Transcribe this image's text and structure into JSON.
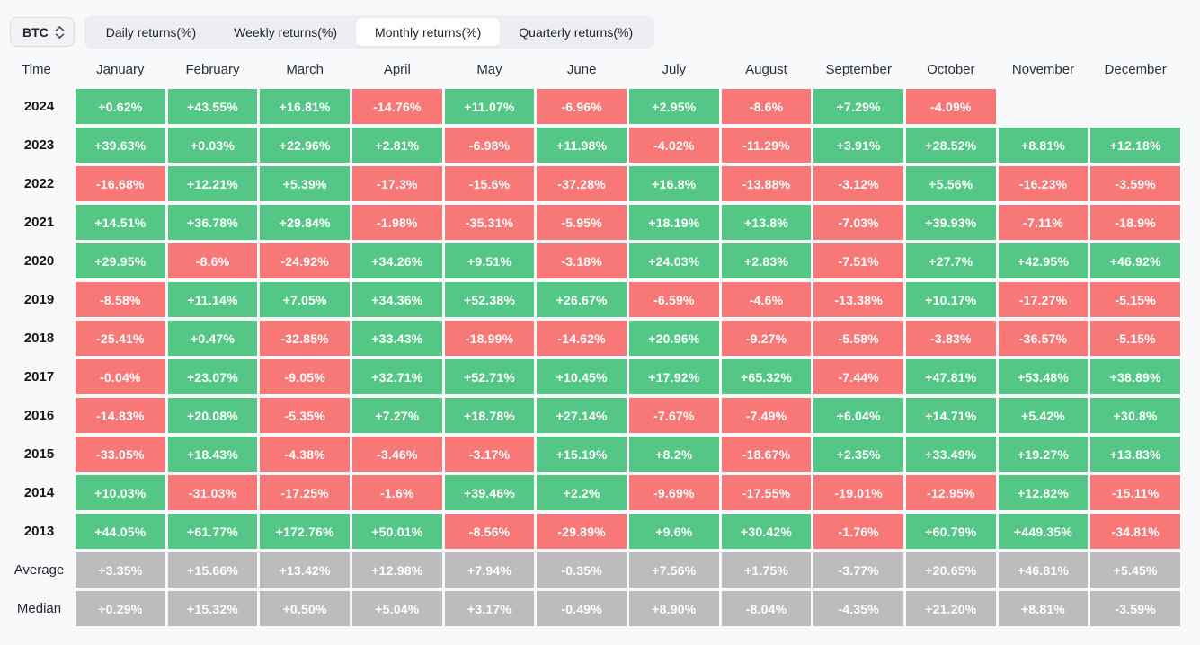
{
  "controls": {
    "symbol": "BTC",
    "tabs": [
      {
        "label": "Daily returns(%)",
        "slug": "daily-returns"
      },
      {
        "label": "Weekly returns(%)",
        "slug": "weekly-returns"
      },
      {
        "label": "Monthly returns(%)",
        "slug": "monthly-returns"
      },
      {
        "label": "Quarterly returns(%)",
        "slug": "quarterly-returns"
      }
    ],
    "active_tab_index": 2
  },
  "colors": {
    "positive": "#54c787",
    "negative": "#f87878",
    "summary": "#bcbcbf"
  },
  "chart_data": {
    "type": "heatmap",
    "title": "BTC Monthly returns(%)",
    "time_header": "Time",
    "columns": [
      "January",
      "February",
      "March",
      "April",
      "May",
      "June",
      "July",
      "August",
      "September",
      "October",
      "November",
      "December"
    ],
    "rows": [
      {
        "label": "2024",
        "type": "year",
        "values": [
          "+0.62%",
          "+43.55%",
          "+16.81%",
          "-14.76%",
          "+11.07%",
          "-6.96%",
          "+2.95%",
          "-8.6%",
          "+7.29%",
          "-4.09%",
          "",
          ""
        ]
      },
      {
        "label": "2023",
        "type": "year",
        "values": [
          "+39.63%",
          "+0.03%",
          "+22.96%",
          "+2.81%",
          "-6.98%",
          "+11.98%",
          "-4.02%",
          "-11.29%",
          "+3.91%",
          "+28.52%",
          "+8.81%",
          "+12.18%"
        ]
      },
      {
        "label": "2022",
        "type": "year",
        "values": [
          "-16.68%",
          "+12.21%",
          "+5.39%",
          "-17.3%",
          "-15.6%",
          "-37.28%",
          "+16.8%",
          "-13.88%",
          "-3.12%",
          "+5.56%",
          "-16.23%",
          "-3.59%"
        ]
      },
      {
        "label": "2021",
        "type": "year",
        "values": [
          "+14.51%",
          "+36.78%",
          "+29.84%",
          "-1.98%",
          "-35.31%",
          "-5.95%",
          "+18.19%",
          "+13.8%",
          "-7.03%",
          "+39.93%",
          "-7.11%",
          "-18.9%"
        ]
      },
      {
        "label": "2020",
        "type": "year",
        "values": [
          "+29.95%",
          "-8.6%",
          "-24.92%",
          "+34.26%",
          "+9.51%",
          "-3.18%",
          "+24.03%",
          "+2.83%",
          "-7.51%",
          "+27.7%",
          "+42.95%",
          "+46.92%"
        ]
      },
      {
        "label": "2019",
        "type": "year",
        "values": [
          "-8.58%",
          "+11.14%",
          "+7.05%",
          "+34.36%",
          "+52.38%",
          "+26.67%",
          "-6.59%",
          "-4.6%",
          "-13.38%",
          "+10.17%",
          "-17.27%",
          "-5.15%"
        ]
      },
      {
        "label": "2018",
        "type": "year",
        "values": [
          "-25.41%",
          "+0.47%",
          "-32.85%",
          "+33.43%",
          "-18.99%",
          "-14.62%",
          "+20.96%",
          "-9.27%",
          "-5.58%",
          "-3.83%",
          "-36.57%",
          "-5.15%"
        ]
      },
      {
        "label": "2017",
        "type": "year",
        "values": [
          "-0.04%",
          "+23.07%",
          "-9.05%",
          "+32.71%",
          "+52.71%",
          "+10.45%",
          "+17.92%",
          "+65.32%",
          "-7.44%",
          "+47.81%",
          "+53.48%",
          "+38.89%"
        ]
      },
      {
        "label": "2016",
        "type": "year",
        "values": [
          "-14.83%",
          "+20.08%",
          "-5.35%",
          "+7.27%",
          "+18.78%",
          "+27.14%",
          "-7.67%",
          "-7.49%",
          "+6.04%",
          "+14.71%",
          "+5.42%",
          "+30.8%"
        ]
      },
      {
        "label": "2015",
        "type": "year",
        "values": [
          "-33.05%",
          "+18.43%",
          "-4.38%",
          "-3.46%",
          "-3.17%",
          "+15.19%",
          "+8.2%",
          "-18.67%",
          "+2.35%",
          "+33.49%",
          "+19.27%",
          "+13.83%"
        ]
      },
      {
        "label": "2014",
        "type": "year",
        "values": [
          "+10.03%",
          "-31.03%",
          "-17.25%",
          "-1.6%",
          "+39.46%",
          "+2.2%",
          "-9.69%",
          "-17.55%",
          "-19.01%",
          "-12.95%",
          "+12.82%",
          "-15.11%"
        ]
      },
      {
        "label": "2013",
        "type": "year",
        "values": [
          "+44.05%",
          "+61.77%",
          "+172.76%",
          "+50.01%",
          "-8.56%",
          "-29.89%",
          "+9.6%",
          "+30.42%",
          "-1.76%",
          "+60.79%",
          "+449.35%",
          "-34.81%"
        ]
      },
      {
        "label": "Average",
        "type": "summary",
        "values": [
          "+3.35%",
          "+15.66%",
          "+13.42%",
          "+12.98%",
          "+7.94%",
          "-0.35%",
          "+7.56%",
          "+1.75%",
          "-3.77%",
          "+20.65%",
          "+46.81%",
          "+5.45%"
        ]
      },
      {
        "label": "Median",
        "type": "summary",
        "values": [
          "+0.29%",
          "+15.32%",
          "+0.50%",
          "+5.04%",
          "+3.17%",
          "-0.49%",
          "+8.90%",
          "-8.04%",
          "-4.35%",
          "+21.20%",
          "+8.81%",
          "-3.59%"
        ]
      }
    ]
  }
}
